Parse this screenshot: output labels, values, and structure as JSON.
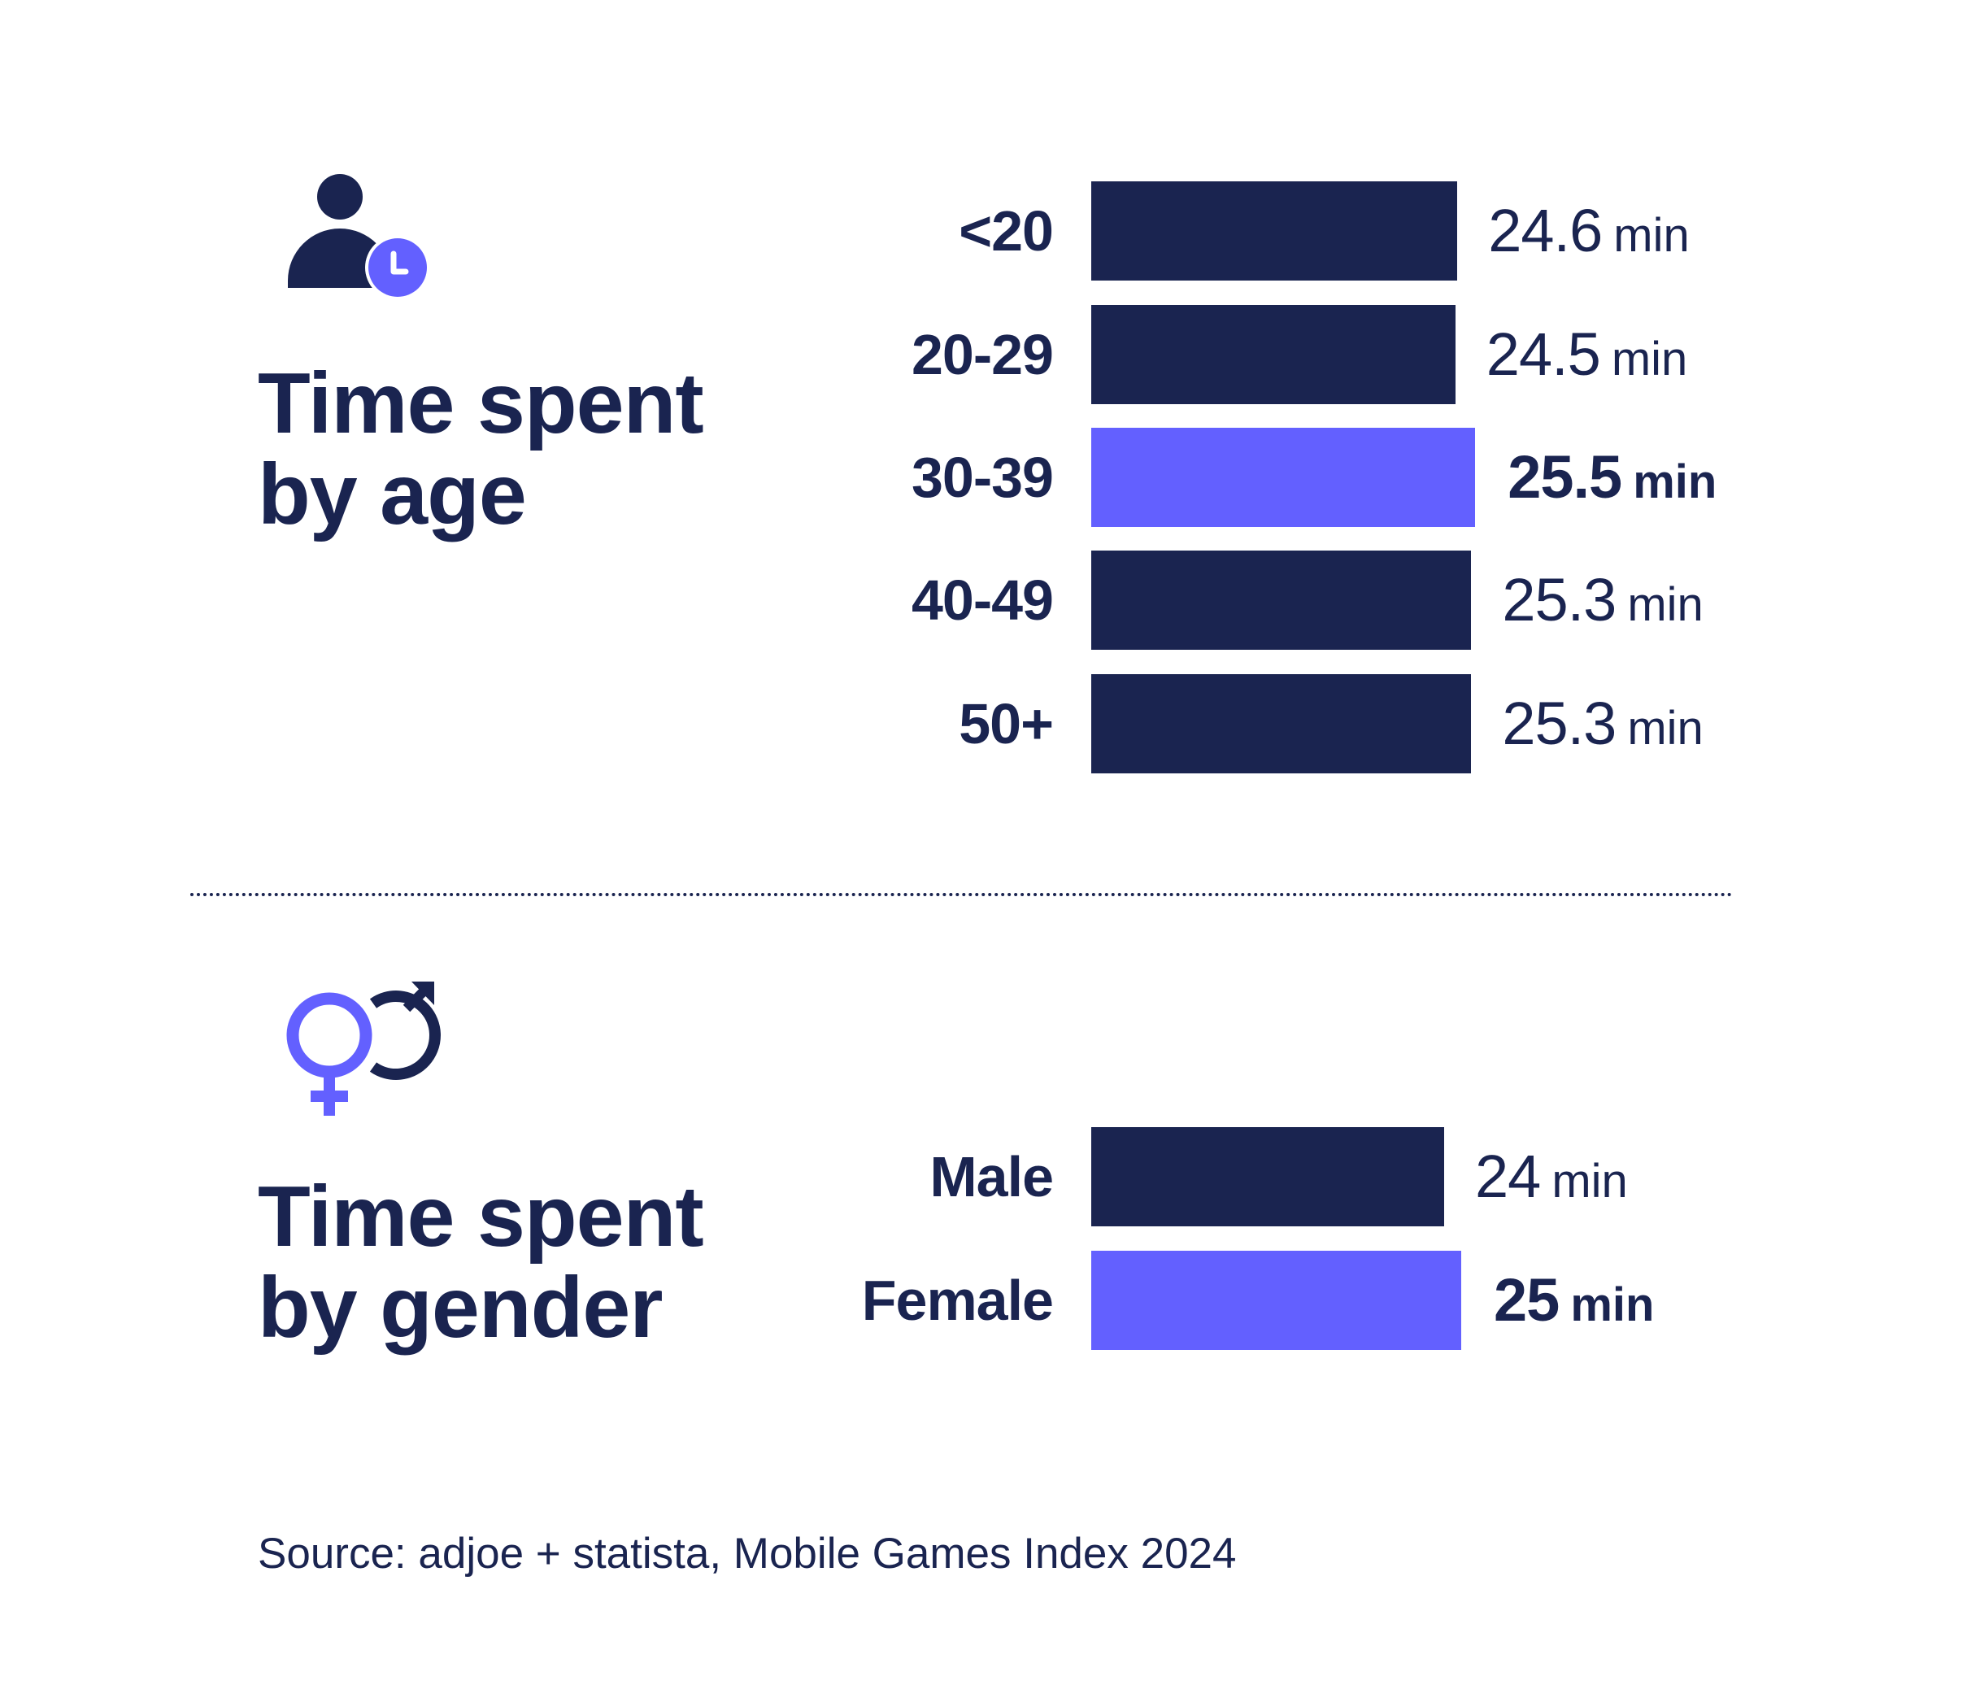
{
  "colors": {
    "primary": "#1a2450",
    "highlight": "#6360ff",
    "background": "#ffffff"
  },
  "age_section": {
    "icon": "person-clock-icon",
    "title_line1": "Time spent",
    "title_line2": "by age"
  },
  "gender_section": {
    "icon": "female-male-symbol-icon",
    "title_line1": "Time spent",
    "title_line2": "by gender"
  },
  "source": "Source: adjoe + statista,  Mobile Games Index 2024",
  "chart_data": [
    {
      "type": "bar",
      "orientation": "horizontal",
      "title": "Time spent by age",
      "categories": [
        "<20",
        "20-29",
        "30-39",
        "40-49",
        "50+"
      ],
      "values": [
        24.6,
        24.5,
        25.5,
        25.3,
        25.3
      ],
      "value_labels": [
        "24.6",
        "24.5",
        "25.5",
        "25.3",
        "25.3"
      ],
      "unit": "min",
      "highlight_index": 2
    },
    {
      "type": "bar",
      "orientation": "horizontal",
      "title": "Time spent by gender",
      "categories": [
        "Male",
        "Female"
      ],
      "values": [
        24,
        25
      ],
      "value_labels": [
        "24",
        "25"
      ],
      "unit": "min",
      "highlight_index": 1
    }
  ]
}
